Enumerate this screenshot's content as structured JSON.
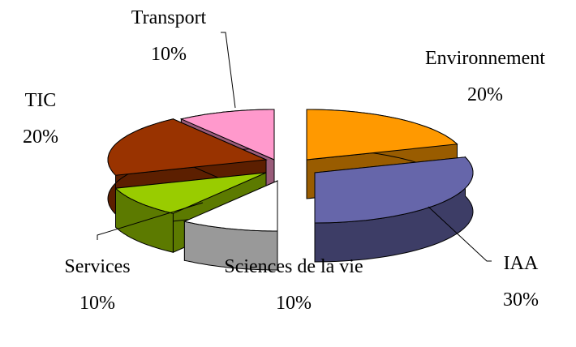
{
  "chart_data": {
    "type": "pie",
    "categories": [
      "Environnement",
      "IAA",
      "Sciences de la vie",
      "Services",
      "TIC",
      "Transport"
    ],
    "values": [
      20,
      30,
      10,
      10,
      20,
      10
    ],
    "value_labels": [
      "20%",
      "30%",
      "10%",
      "10%",
      "20%",
      "10%"
    ],
    "colors": [
      "#ff9900",
      "#6666aa",
      "#ffffff",
      "#99cc00",
      "#993300",
      "#ff99cc"
    ]
  }
}
